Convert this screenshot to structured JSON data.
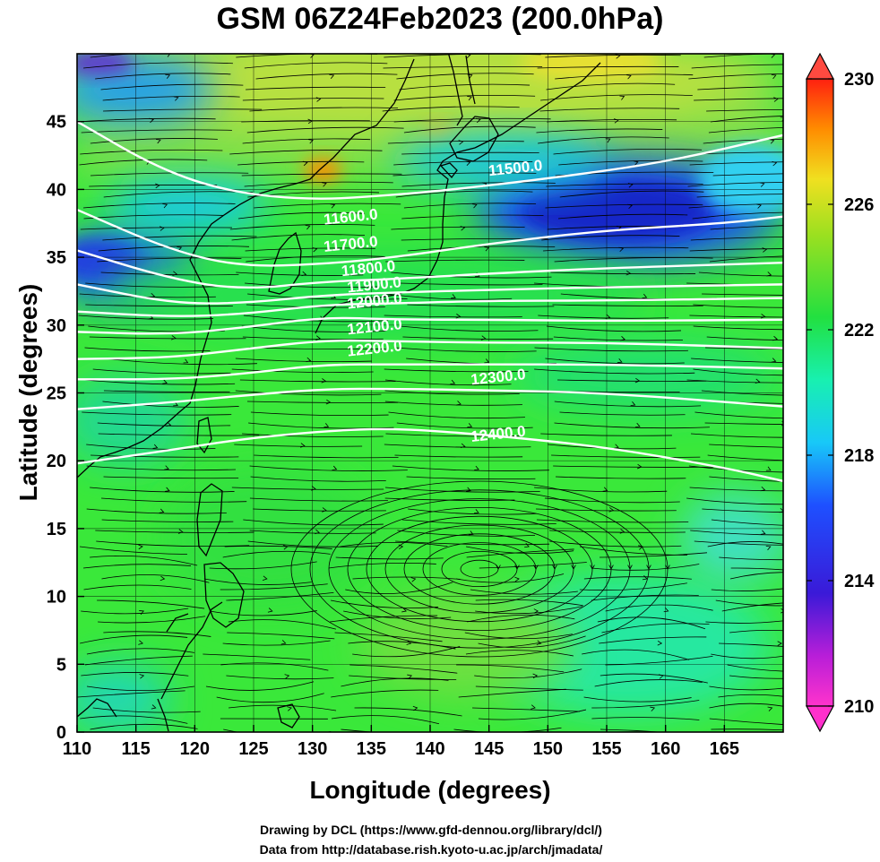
{
  "title": "GSM 06Z24Feb2023 (200.0hPa)",
  "credits": {
    "line1": "Drawing by DCL (https://www.gfd-dennou.org/library/dcl/)",
    "line2": "Data from http://database.rish.kyoto-u.ac.jp/arch/jmadata/"
  },
  "chart_data": {
    "type": "map",
    "xlabel": "Longitude (degrees)",
    "ylabel": "Latitude  (degrees)",
    "xlim": [
      110,
      170
    ],
    "ylim": [
      0,
      50
    ],
    "xticks": [
      110,
      115,
      120,
      125,
      130,
      135,
      140,
      145,
      150,
      155,
      160,
      165
    ],
    "yticks": [
      0,
      5,
      10,
      15,
      20,
      25,
      30,
      35,
      40,
      45
    ],
    "shading": {
      "variable": "temperature",
      "colorbar_ticks": [
        210,
        214,
        218,
        222,
        226,
        230
      ],
      "range": [
        210,
        230
      ],
      "colors": {
        "magenta": "#ff33cc",
        "purple": "#8a1fd0",
        "blue": "#1e3cff",
        "cyan": "#18d8f0",
        "green": "#22e040",
        "yellow": "#f0e020",
        "orange": "#ff8c00",
        "red": "#ff2010"
      }
    },
    "contours": [
      {
        "label": "11500.0",
        "value": 11500
      },
      {
        "label": "11600.0",
        "value": 11600
      },
      {
        "label": "11700.0",
        "value": 11700
      },
      {
        "label": "11800.0",
        "value": 11800
      },
      {
        "label": "11900.0",
        "value": 11900
      },
      {
        "label": "12000.0",
        "value": 12000
      },
      {
        "label": "12100.0",
        "value": 12100
      },
      {
        "label": "12200.0",
        "value": 12200
      },
      {
        "label": "12300.0",
        "value": 12300
      },
      {
        "label": "12400.0",
        "value": 12400
      }
    ],
    "streamlines": true,
    "grid": true
  }
}
